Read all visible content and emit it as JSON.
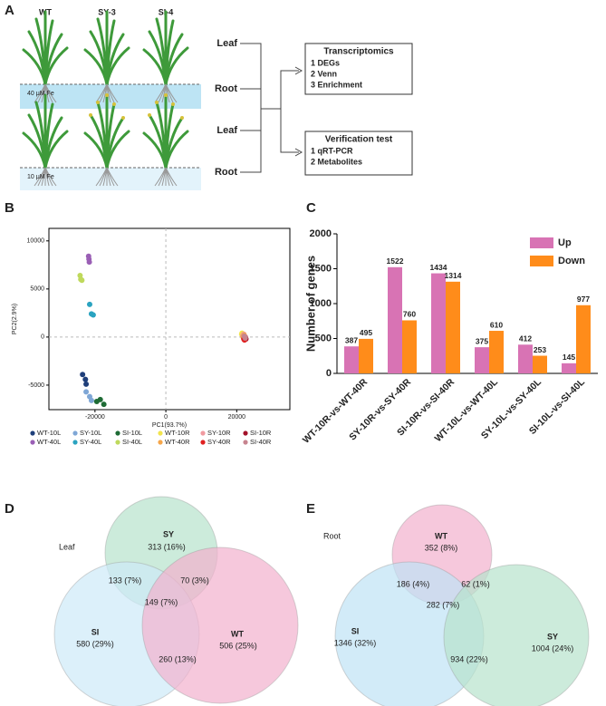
{
  "panels": [
    "A",
    "B",
    "C",
    "D",
    "E"
  ],
  "diagram": {
    "plants": [
      "WT",
      "SY-3",
      "SI-4"
    ],
    "conditions": [
      "40 μM Fe",
      "10 μM Fe"
    ],
    "tissues": [
      "Leaf",
      "Root",
      "Leaf",
      "Root"
    ],
    "boxes": [
      {
        "title": "Transcriptomics",
        "items": [
          "1 DEGs",
          "2 Venn",
          "3 Enrichment"
        ]
      },
      {
        "title": "Verification test",
        "items": [
          "1 qRT-PCR",
          "2 Metabolites"
        ]
      }
    ]
  },
  "chart_data": [
    {
      "type": "scatter",
      "xlabel": "PC1(93.7%)",
      "ylabel": "PC2(2.9%)",
      "xlim": [
        -33000,
        35000
      ],
      "ylim": [
        -7550,
        11300
      ],
      "xticks": [
        -20000,
        0,
        20000
      ],
      "yticks": [
        -5000,
        0,
        5000,
        10000
      ],
      "series": [
        {
          "name": "WT-10L",
          "color": "#1f3f7a",
          "x": [
            -23500,
            -22700,
            -22500
          ],
          "y": [
            -3900,
            -4400,
            -4900
          ]
        },
        {
          "name": "SY-10L",
          "color": "#7fa7d6",
          "x": [
            -22500,
            -21500,
            -21000
          ],
          "y": [
            -5700,
            -6200,
            -6600
          ]
        },
        {
          "name": "SI-10L",
          "color": "#1e6b35",
          "x": [
            -19500,
            -18500,
            -17500
          ],
          "y": [
            -6700,
            -6500,
            -7000
          ]
        },
        {
          "name": "WT-10R",
          "color": "#f2e44e",
          "x": [
            21400,
            21600,
            21500
          ],
          "y": [
            300,
            200,
            400
          ]
        },
        {
          "name": "SY-10R",
          "color": "#f09aa0",
          "x": [
            21800,
            21700,
            22000
          ],
          "y": [
            200,
            100,
            300
          ]
        },
        {
          "name": "SI-10R",
          "color": "#a3122a",
          "x": [
            22500,
            22400,
            22600
          ],
          "y": [
            -100,
            0,
            -200
          ]
        },
        {
          "name": "WT-40L",
          "color": "#9a5fb5",
          "x": [
            -21800,
            -21700,
            -21600
          ],
          "y": [
            8400,
            8100,
            7800
          ]
        },
        {
          "name": "SY-40L",
          "color": "#2aa3c0",
          "x": [
            -21500,
            -21000,
            -20500
          ],
          "y": [
            3400,
            2400,
            2300
          ]
        },
        {
          "name": "SI-40L",
          "color": "#bfd95c",
          "x": [
            -24200,
            -24000,
            -23700
          ],
          "y": [
            6400,
            6000,
            5900
          ]
        },
        {
          "name": "WT-40R",
          "color": "#f5a64a",
          "x": [
            21900,
            21800,
            22100
          ],
          "y": [
            100,
            0,
            200
          ]
        },
        {
          "name": "SY-40R",
          "color": "#e02020",
          "x": [
            22000,
            22200,
            22300
          ],
          "y": [
            -200,
            -300,
            -100
          ]
        },
        {
          "name": "SI-40R",
          "color": "#c7848f",
          "x": [
            22300,
            22100,
            22400
          ],
          "y": [
            0,
            100,
            -100
          ]
        }
      ]
    },
    {
      "type": "bar",
      "ylabel": "Number of genes",
      "ylim": [
        0,
        2000
      ],
      "yticks": [
        0,
        500,
        1000,
        1500,
        2000
      ],
      "categories": [
        "WT-10R-vs-WT-40R",
        "SY-10R-vs-SY-40R",
        "SI-10R-vs-SI-40R",
        "WT-10L-vs-WT-40L",
        "SY-10L-vs-SY-40L",
        "SI-10L-vs-SI-40L"
      ],
      "legend": "upper right",
      "series": [
        {
          "name": "Up",
          "color": "#d873b4",
          "values": [
            387,
            1522,
            1434,
            375,
            412,
            145
          ]
        },
        {
          "name": "Down",
          "color": "#ff8c1a",
          "values": [
            495,
            760,
            1314,
            610,
            253,
            977
          ]
        }
      ]
    },
    {
      "type": "venn",
      "title": "Leaf",
      "sets": [
        "SY",
        "SI",
        "WT"
      ],
      "colors": [
        "#b6e2cc",
        "#cdeaf8",
        "#f2b1cd"
      ],
      "values": [
        313,
        580,
        506,
        133,
        70,
        260,
        149
      ],
      "value_labels": [
        "313 (16%)",
        "580 (29%)",
        "506 (25%)",
        "133 (7%)",
        "70 (3%)",
        "260 (13%)",
        "149 (7%)"
      ]
    },
    {
      "type": "venn",
      "title": "Root",
      "sets": [
        "WT",
        "SI",
        "SY"
      ],
      "colors": [
        "#f2b1cd",
        "#bfe3f5",
        "#b6e2cc"
      ],
      "values": [
        352,
        1346,
        1004,
        186,
        62,
        934,
        282
      ],
      "value_labels": [
        "352 (8%)",
        "1346 (32%)",
        "1004 (24%)",
        "186 (4%)",
        "62 (1%)",
        "934 (22%)",
        "282 (7%)"
      ]
    }
  ]
}
